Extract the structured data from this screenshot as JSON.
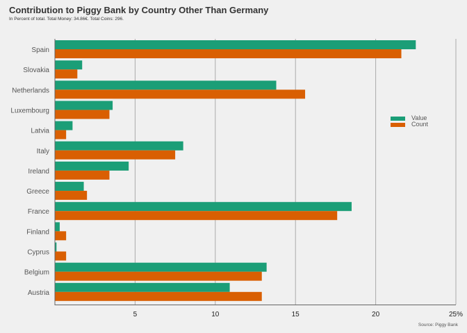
{
  "title": "Contribution to Piggy Bank by Country Other Than Germany",
  "subtitle": "In Percent of total. Total Money: 34.86€. Total Coins: 296.",
  "source": "Source: Piggy Bank",
  "colors": {
    "value": "#1b9e77",
    "count": "#d95f02",
    "grid": "#aaaaaa",
    "axis": "#666666",
    "background": "#f0f0f0"
  },
  "chart_data": {
    "type": "bar",
    "orientation": "horizontal",
    "title": "Contribution to Piggy Bank by Country Other Than Germany",
    "subtitle": "In Percent of total. Total Money: 34.86€. Total Coins: 296.",
    "categories": [
      "Spain",
      "Slovakia",
      "Netherlands",
      "Luxembourg",
      "Latvia",
      "Italy",
      "Ireland",
      "Greece",
      "France",
      "Finland",
      "Cyprus",
      "Belgium",
      "Austria"
    ],
    "series": [
      {
        "name": "Value",
        "values": [
          22.5,
          1.7,
          13.8,
          3.6,
          1.1,
          8.0,
          4.6,
          1.8,
          18.5,
          0.3,
          0.1,
          13.2,
          10.9
        ]
      },
      {
        "name": "Count",
        "values": [
          21.6,
          1.4,
          15.6,
          3.4,
          0.7,
          7.5,
          3.4,
          2.0,
          17.6,
          0.7,
          0.7,
          12.9,
          12.9
        ]
      }
    ],
    "x_ticks": [
      "5",
      "10",
      "15",
      "20",
      "25%"
    ],
    "x_tick_values": [
      5,
      10,
      15,
      20,
      25
    ],
    "xlim": [
      0,
      25
    ],
    "grid": true,
    "legend_position": "right"
  }
}
